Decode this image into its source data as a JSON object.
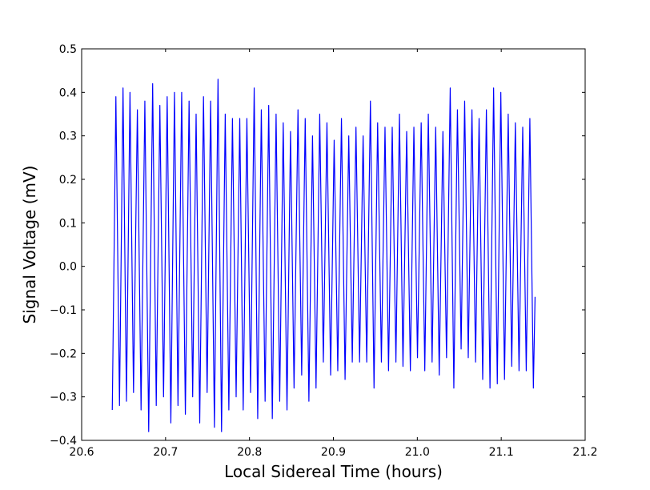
{
  "chart_data": {
    "type": "line",
    "title": "",
    "xlabel": "Local Sidereal Time (hours)",
    "ylabel": "Signal Voltage (mV)",
    "xlim": [
      20.6,
      21.2
    ],
    "ylim": [
      -0.4,
      0.5
    ],
    "xticks": [
      "20.6",
      "20.7",
      "20.8",
      "20.9",
      "21.0",
      "21.1",
      "21.2"
    ],
    "yticks": [
      "0.5",
      "0.4",
      "0.3",
      "0.2",
      "0.1",
      "0.0",
      "−0.1",
      "−0.2",
      "−0.3",
      "−0.4"
    ],
    "grid": false,
    "legend": "none",
    "line_color": "#0000ff",
    "series": [
      {
        "x": [
          20.6365,
          20.6408,
          20.6451,
          20.6493,
          20.6534,
          20.6576,
          20.6618,
          20.6664,
          20.6708,
          20.6753,
          20.6799,
          20.6846,
          20.6889,
          20.6932,
          20.6976,
          20.7019,
          20.7063,
          20.7106,
          20.7148,
          20.7192,
          20.7236,
          20.728,
          20.7323,
          20.7364,
          20.7407,
          20.7452,
          20.7495,
          20.7537,
          20.7582,
          20.7625,
          20.7667,
          20.7711,
          20.7754,
          20.7797,
          20.7841,
          20.7884,
          20.7925,
          20.7969,
          20.8013,
          20.8056,
          20.8098,
          20.8141,
          20.8186,
          20.8229,
          20.8272,
          20.8317,
          20.836,
          20.8402,
          20.8447,
          20.8489,
          20.8531,
          20.8578,
          20.8622,
          20.8664,
          20.8708,
          20.8751,
          20.8793,
          20.8837,
          20.888,
          20.8923,
          20.8967,
          20.9009,
          20.9052,
          20.9096,
          20.9139,
          20.9183,
          20.9225,
          20.9269,
          20.9312,
          20.9354,
          20.9397,
          20.9441,
          20.9484,
          20.9527,
          20.9572,
          20.9615,
          20.9657,
          20.9701,
          20.9745,
          20.9787,
          20.9829,
          20.9873,
          20.9917,
          20.9959,
          21.0002,
          21.0046,
          21.0089,
          21.0131,
          21.0176,
          21.0219,
          21.0261,
          21.0305,
          21.0348,
          21.0392,
          21.0435,
          21.0478,
          21.0522,
          21.0564,
          21.0607,
          21.0651,
          21.0694,
          21.0736,
          21.0779,
          21.0823,
          21.0866,
          21.0909,
          21.0953,
          21.0995,
          21.1039,
          21.1083,
          21.1125,
          21.1168,
          21.1212,
          21.1256,
          21.1298,
          21.1341,
          21.1383,
          21.1403
        ],
        "y": [
          -0.33,
          0.39,
          -0.32,
          0.41,
          -0.31,
          0.4,
          -0.29,
          0.36,
          -0.33,
          0.38,
          -0.38,
          0.42,
          -0.32,
          0.37,
          -0.3,
          0.39,
          -0.36,
          0.4,
          -0.32,
          0.4,
          -0.34,
          0.38,
          -0.3,
          0.35,
          -0.36,
          0.39,
          -0.29,
          0.38,
          -0.37,
          0.43,
          -0.38,
          0.35,
          -0.33,
          0.34,
          -0.3,
          0.34,
          -0.33,
          0.34,
          -0.29,
          0.41,
          -0.35,
          0.36,
          -0.31,
          0.37,
          -0.35,
          0.35,
          -0.31,
          0.33,
          -0.33,
          0.31,
          -0.28,
          0.36,
          -0.25,
          0.34,
          -0.31,
          0.3,
          -0.28,
          0.35,
          -0.22,
          0.33,
          -0.25,
          0.29,
          -0.24,
          0.34,
          -0.26,
          0.3,
          -0.22,
          0.32,
          -0.22,
          0.3,
          -0.22,
          0.38,
          -0.28,
          0.33,
          -0.22,
          0.32,
          -0.24,
          0.32,
          -0.22,
          0.35,
          -0.23,
          0.31,
          -0.24,
          0.32,
          -0.21,
          0.33,
          -0.24,
          0.35,
          -0.22,
          0.32,
          -0.25,
          0.31,
          -0.21,
          0.41,
          -0.28,
          0.36,
          -0.19,
          0.38,
          -0.21,
          0.36,
          -0.22,
          0.34,
          -0.26,
          0.36,
          -0.28,
          0.41,
          -0.27,
          0.4,
          -0.26,
          0.35,
          -0.23,
          0.33,
          -0.24,
          0.32,
          -0.24,
          0.34,
          -0.28,
          -0.07
        ]
      }
    ]
  }
}
